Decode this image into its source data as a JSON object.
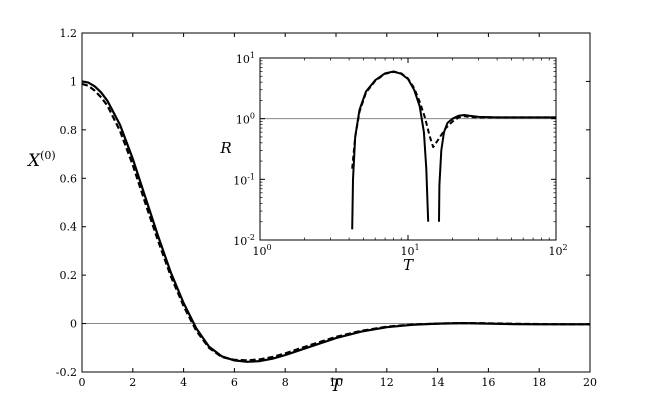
{
  "chart_data": [
    {
      "type": "line",
      "xlabel": "T",
      "ylabel": "X",
      "ylabel_superscript": "(0)",
      "xlim": [
        0,
        20
      ],
      "ylim": [
        -0.2,
        1.2
      ],
      "xticks": [
        "0",
        "2",
        "4",
        "6",
        "8",
        "10",
        "12",
        "14",
        "16",
        "18",
        "20"
      ],
      "yticks": [
        "-0.2",
        "0",
        "0.2",
        "0.4",
        "0.6",
        "0.8",
        "1",
        "1.2"
      ],
      "reference_line": 0,
      "series": [
        {
          "style": "solid",
          "x": [
            0,
            0.25,
            0.5,
            0.75,
            1,
            1.5,
            2,
            2.5,
            3,
            3.5,
            4,
            4.5,
            5,
            5.5,
            6,
            6.5,
            7,
            7.5,
            8,
            9,
            10,
            11,
            12,
            13,
            14,
            15,
            16,
            17,
            18,
            19,
            20
          ],
          "y": [
            1.0,
            0.995,
            0.98,
            0.955,
            0.92,
            0.82,
            0.68,
            0.52,
            0.36,
            0.21,
            0.085,
            -0.02,
            -0.095,
            -0.135,
            -0.152,
            -0.158,
            -0.155,
            -0.145,
            -0.13,
            -0.095,
            -0.06,
            -0.033,
            -0.015,
            -0.005,
            0.0,
            0.002,
            0.0,
            -0.002,
            -0.003,
            -0.003,
            -0.003
          ]
        },
        {
          "style": "dashed",
          "x": [
            0,
            0.25,
            0.5,
            0.75,
            1,
            1.5,
            2,
            2.5,
            3,
            3.5,
            4,
            4.5,
            5,
            5.5,
            6,
            6.5,
            7,
            7.5,
            8,
            9,
            10,
            11,
            12,
            13,
            14,
            15,
            16,
            17,
            18,
            19,
            20
          ],
          "y": [
            0.99,
            0.982,
            0.962,
            0.935,
            0.9,
            0.795,
            0.655,
            0.495,
            0.34,
            0.195,
            0.072,
            -0.03,
            -0.1,
            -0.138,
            -0.15,
            -0.152,
            -0.148,
            -0.138,
            -0.123,
            -0.088,
            -0.055,
            -0.03,
            -0.013,
            -0.004,
            0.0,
            0.002,
            0.001,
            -0.001,
            -0.002,
            -0.003,
            -0.003
          ]
        }
      ]
    },
    {
      "type": "line",
      "xlabel": "T",
      "ylabel": "R",
      "xscale": "log",
      "yscale": "log",
      "xlim": [
        1,
        100
      ],
      "ylim": [
        0.01,
        10
      ],
      "xticks": [
        {
          "value": 1,
          "base": "10",
          "exp": "0"
        },
        {
          "value": 10,
          "base": "10",
          "exp": "1"
        },
        {
          "value": 100,
          "base": "10",
          "exp": "2"
        }
      ],
      "yticks": [
        {
          "value": 0.01,
          "base": "10",
          "exp": "-2"
        },
        {
          "value": 0.1,
          "base": "10",
          "exp": "-1"
        },
        {
          "value": 1,
          "base": "10",
          "exp": "0"
        },
        {
          "value": 10,
          "base": "10",
          "exp": "1"
        }
      ],
      "reference_line": 1,
      "series": [
        {
          "style": "solid",
          "segments": [
            {
              "x": [
                4.2,
                4.25,
                4.4,
                4.7,
                5.2,
                6,
                7,
                8,
                9,
                10,
                11,
                12,
                12.8,
                13.3,
                13.6,
                13.7
              ],
              "y": [
                0.015,
                0.1,
                0.5,
                1.4,
                2.8,
                4.3,
                5.6,
                6.0,
                5.5,
                4.5,
                3.0,
                1.6,
                0.6,
                0.15,
                0.03,
                0.02
              ]
            },
            {
              "x": [
                16.2,
                16.3,
                16.8,
                17.5,
                18.5,
                20,
                22,
                24,
                26,
                30,
                40,
                60,
                100
              ],
              "y": [
                0.02,
                0.08,
                0.3,
                0.6,
                0.85,
                1.0,
                1.12,
                1.15,
                1.12,
                1.07,
                1.05,
                1.05,
                1.05
              ]
            }
          ]
        },
        {
          "style": "dashed",
          "segments": [
            {
              "x": [
                4.2,
                4.4,
                4.7,
                5.2,
                6,
                7,
                8,
                9,
                10,
                11,
                12,
                13,
                14,
                14.8,
                16,
                18,
                20,
                22,
                24,
                27,
                30,
                40,
                60,
                100
              ],
              "y": [
                0.15,
                0.5,
                1.3,
                2.7,
                4.2,
                5.5,
                5.9,
                5.6,
                4.6,
                3.2,
                1.9,
                1.05,
                0.52,
                0.34,
                0.45,
                0.7,
                0.9,
                1.05,
                1.1,
                1.06,
                1.05,
                1.05,
                1.05,
                1.05
              ]
            }
          ]
        }
      ]
    }
  ]
}
